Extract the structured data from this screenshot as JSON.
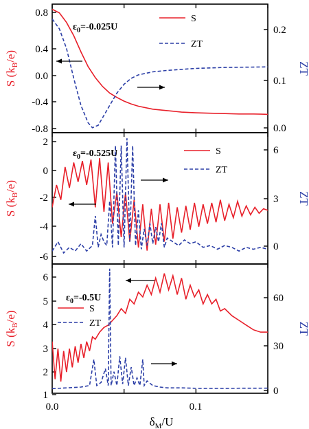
{
  "colors": {
    "s_series": "#e8202a",
    "zt_series": "#2b3ea6",
    "axis": "#000000",
    "left_axis_label": "#e8202a",
    "right_axis_label": "#2b3ea6"
  },
  "xlabel_main": "δ",
  "xlabel_sub": "M",
  "xlabel_tail": "/U",
  "x_ticks": [
    "0.0",
    "0.1"
  ],
  "chart_data": [
    {
      "type": "line",
      "annotation_prefix": "ε",
      "annotation_sub": "0",
      "annotation_value": "=-0.025U",
      "ylabel_left_main": "S (k",
      "ylabel_left_sub": "B",
      "ylabel_left_tail": "/e)",
      "ylabel_right": "ZT",
      "xlim": [
        0,
        0.15
      ],
      "ylim_left": [
        -0.9,
        0.85
      ],
      "ylim_right": [
        -0.01,
        0.25
      ],
      "left_ticks": [
        "-0.8",
        "-0.4",
        "0.0",
        "0.4",
        "0.8"
      ],
      "right_ticks": [
        "0.0",
        "0.1",
        "0.2"
      ],
      "legend": "top-right",
      "series": [
        {
          "name": "S",
          "axis": "left",
          "style": "solid",
          "x": [
            0,
            0.005,
            0.01,
            0.015,
            0.02,
            0.025,
            0.03,
            0.035,
            0.04,
            0.045,
            0.05,
            0.055,
            0.06,
            0.07,
            0.08,
            0.09,
            0.1,
            0.11,
            0.12,
            0.13,
            0.14,
            0.15
          ],
          "y": [
            0.78,
            0.73,
            0.6,
            0.42,
            0.2,
            0.0,
            -0.15,
            -0.27,
            -0.36,
            -0.42,
            -0.47,
            -0.51,
            -0.54,
            -0.58,
            -0.6,
            -0.62,
            -0.63,
            -0.635,
            -0.64,
            -0.645,
            -0.645,
            -0.65
          ]
        },
        {
          "name": "ZT",
          "axis": "right",
          "style": "dashed",
          "x": [
            0,
            0.005,
            0.01,
            0.015,
            0.02,
            0.025,
            0.028,
            0.032,
            0.035,
            0.04,
            0.045,
            0.05,
            0.055,
            0.06,
            0.07,
            0.08,
            0.09,
            0.1,
            0.12,
            0.15
          ],
          "y": [
            0.22,
            0.2,
            0.16,
            0.1,
            0.045,
            0.01,
            0.0,
            0.005,
            0.02,
            0.045,
            0.07,
            0.088,
            0.1,
            0.107,
            0.113,
            0.116,
            0.118,
            0.12,
            0.122,
            0.123
          ]
        }
      ]
    },
    {
      "type": "line",
      "annotation_prefix": "ε",
      "annotation_sub": "0",
      "annotation_value": "=-0.525U",
      "ylabel_left_main": "S (k",
      "ylabel_left_sub": "B",
      "ylabel_left_tail": "/e)",
      "ylabel_right": "ZT",
      "xlim": [
        0,
        0.15
      ],
      "ylim_left": [
        -6.3,
        2.5
      ],
      "ylim_right": [
        -0.4,
        6.7
      ],
      "left_ticks": [
        "-6",
        "-4",
        "-2",
        "0",
        "2"
      ],
      "right_ticks": [
        "0",
        "3",
        "6"
      ],
      "legend": "top-right",
      "series": [
        {
          "name": "S",
          "axis": "left",
          "style": "solid",
          "x": [
            0,
            0.003,
            0.006,
            0.009,
            0.012,
            0.015,
            0.018,
            0.021,
            0.024,
            0.027,
            0.03,
            0.033,
            0.036,
            0.039,
            0.042,
            0.045,
            0.048,
            0.051,
            0.054,
            0.057,
            0.06,
            0.063,
            0.066,
            0.069,
            0.072,
            0.075,
            0.078,
            0.081,
            0.084,
            0.087,
            0.09,
            0.093,
            0.096,
            0.099,
            0.102,
            0.105,
            0.108,
            0.111,
            0.114,
            0.117,
            0.12,
            0.123,
            0.126,
            0.129,
            0.132,
            0.135,
            0.138,
            0.141,
            0.144,
            0.147,
            0.15
          ],
          "y": [
            -2.5,
            -1.0,
            -2.0,
            0.2,
            -1.2,
            0.5,
            -0.8,
            0.6,
            -1.0,
            0.7,
            -2.5,
            0.8,
            -2.8,
            0.5,
            -3.6,
            -1.5,
            -4.5,
            -1.5,
            -4.8,
            -2.0,
            -5.2,
            -2.3,
            -5.4,
            -2.6,
            -5.0,
            -2.3,
            -4.8,
            -2.2,
            -4.6,
            -2.5,
            -4.2,
            -2.4,
            -4.0,
            -2.2,
            -3.8,
            -2.3,
            -3.6,
            -2.2,
            -3.5,
            -2.0,
            -3.4,
            -2.3,
            -3.2,
            -2.1,
            -3.1,
            -2.4,
            -3.0,
            -2.5,
            -2.9,
            -2.6,
            -2.7
          ]
        },
        {
          "name": "ZT",
          "axis": "right",
          "style": "dashed",
          "x": [
            0,
            0.004,
            0.008,
            0.012,
            0.016,
            0.02,
            0.024,
            0.028,
            0.03,
            0.032,
            0.034,
            0.036,
            0.038,
            0.04,
            0.042,
            0.044,
            0.046,
            0.048,
            0.05,
            0.052,
            0.054,
            0.056,
            0.058,
            0.06,
            0.062,
            0.064,
            0.066,
            0.068,
            0.07,
            0.072,
            0.074,
            0.076,
            0.078,
            0.08,
            0.084,
            0.088,
            0.092,
            0.096,
            0.1,
            0.105,
            0.11,
            0.115,
            0.12,
            0.125,
            0.13,
            0.135,
            0.14,
            0.145,
            0.15
          ],
          "y": [
            0.3,
            0.8,
            0.2,
            0.5,
            0.3,
            0.7,
            0.3,
            0.6,
            2.2,
            0.5,
            1.2,
            0.8,
            0.6,
            3.0,
            0.5,
            6.0,
            0.6,
            6.0,
            0.5,
            6.4,
            0.8,
            6.0,
            0.6,
            2.5,
            0.4,
            1.5,
            0.6,
            1.8,
            0.7,
            1.6,
            0.8,
            1.8,
            0.5,
            1.0,
            0.8,
            0.6,
            0.9,
            0.7,
            0.8,
            0.5,
            0.6,
            0.4,
            0.6,
            0.5,
            0.3,
            0.5,
            0.4,
            0.5,
            0.4
          ]
        }
      ]
    },
    {
      "type": "line",
      "annotation_prefix": "ε",
      "annotation_sub": "0",
      "annotation_value": "=-0.5U",
      "ylabel_left_main": "S (k",
      "ylabel_left_sub": "B",
      "ylabel_left_tail": "/e)",
      "ylabel_right": "ZT",
      "xlim": [
        0,
        0.15
      ],
      "ylim_left": [
        1.0,
        6.5
      ],
      "ylim_right": [
        -2,
        82
      ],
      "left_ticks": [
        "1",
        "2",
        "3",
        "4",
        "5",
        "6"
      ],
      "right_ticks": [
        "0",
        "30",
        "60"
      ],
      "legend": "top-left",
      "series": [
        {
          "name": "S",
          "axis": "left",
          "style": "solid",
          "x": [
            0,
            0.002,
            0.004,
            0.006,
            0.008,
            0.01,
            0.012,
            0.014,
            0.016,
            0.018,
            0.02,
            0.022,
            0.024,
            0.026,
            0.028,
            0.03,
            0.033,
            0.036,
            0.039,
            0.042,
            0.045,
            0.048,
            0.051,
            0.054,
            0.057,
            0.06,
            0.063,
            0.066,
            0.069,
            0.072,
            0.075,
            0.078,
            0.081,
            0.084,
            0.087,
            0.09,
            0.093,
            0.096,
            0.099,
            0.102,
            0.105,
            0.108,
            0.111,
            0.114,
            0.117,
            0.12,
            0.125,
            0.13,
            0.135,
            0.14,
            0.145,
            0.15
          ],
          "y": [
            3.2,
            1.6,
            2.9,
            1.5,
            2.8,
            1.9,
            2.9,
            2.1,
            3.0,
            2.3,
            3.1,
            2.5,
            3.2,
            2.8,
            3.4,
            3.3,
            3.6,
            3.8,
            3.9,
            4.1,
            4.3,
            4.6,
            4.4,
            5.0,
            4.8,
            5.3,
            5.1,
            5.6,
            5.2,
            5.9,
            5.3,
            6.1,
            5.4,
            6.0,
            5.2,
            5.9,
            5.0,
            5.6,
            5.1,
            5.4,
            4.8,
            5.2,
            4.8,
            5.0,
            4.5,
            4.6,
            4.3,
            4.1,
            3.9,
            3.7,
            3.6,
            3.6
          ]
        },
        {
          "name": "ZT",
          "axis": "right",
          "style": "dashed",
          "x": [
            0,
            0.01,
            0.02,
            0.026,
            0.029,
            0.031,
            0.034,
            0.037,
            0.039,
            0.04,
            0.041,
            0.043,
            0.045,
            0.047,
            0.049,
            0.051,
            0.053,
            0.055,
            0.057,
            0.059,
            0.061,
            0.063,
            0.064,
            0.066,
            0.07,
            0.075,
            0.08,
            0.09,
            0.1,
            0.12,
            0.15
          ],
          "y": [
            1.0,
            1.5,
            2.0,
            3.0,
            20.0,
            3.0,
            5.0,
            14.0,
            3.0,
            79.0,
            3.0,
            12.0,
            3.0,
            22.0,
            4.0,
            21.0,
            3.0,
            15.0,
            3.0,
            8.0,
            3.0,
            20.0,
            3.0,
            6.0,
            3.0,
            2.0,
            1.5,
            1.5,
            1.2,
            1.2,
            1.3
          ]
        }
      ]
    }
  ]
}
